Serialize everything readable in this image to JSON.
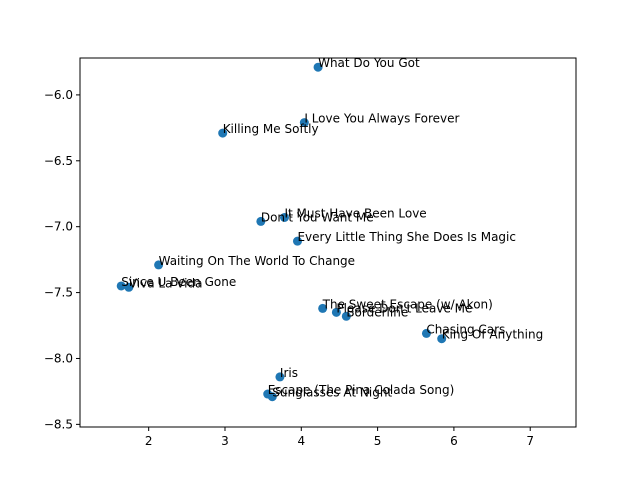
{
  "chart_data": {
    "type": "scatter",
    "title": "",
    "xlabel": "",
    "ylabel": "",
    "xlim": [
      1.1,
      7.6
    ],
    "ylim": [
      -8.52,
      -5.72
    ],
    "x_ticks": [
      2,
      3,
      4,
      5,
      6,
      7
    ],
    "y_ticks": [
      -6.0,
      -6.5,
      -7.0,
      -7.5,
      -8.0,
      -8.5
    ],
    "x_tick_labels": [
      "2",
      "3",
      "4",
      "5",
      "6",
      "7"
    ],
    "y_tick_labels": [
      "−6.0",
      "−6.5",
      "−7.0",
      "−7.5",
      "−8.0",
      "−8.5"
    ],
    "grid": false,
    "color": "#1f77b4",
    "points": [
      {
        "label": "What Do You Got",
        "x": 4.22,
        "y": -5.79
      },
      {
        "label": "I Love You Always Forever",
        "x": 4.04,
        "y": -6.21
      },
      {
        "label": "Killing Me Softly",
        "x": 2.97,
        "y": -6.29
      },
      {
        "label": "It Must Have Been Love",
        "x": 3.78,
        "y": -6.93
      },
      {
        "label": "Don't You Want Me",
        "x": 3.47,
        "y": -6.96
      },
      {
        "label": "Every Little Thing She Does Is Magic",
        "x": 3.95,
        "y": -7.11
      },
      {
        "label": "Waiting On The World To Change",
        "x": 2.13,
        "y": -7.29
      },
      {
        "label": "Since U Been Gone",
        "x": 1.64,
        "y": -7.45
      },
      {
        "label": "Viva La Vida",
        "x": 1.74,
        "y": -7.46
      },
      {
        "label": "The Sweet Escape (w/ Akon)",
        "x": 4.28,
        "y": -7.62
      },
      {
        "label": "Please Don't Leave Me",
        "x": 4.46,
        "y": -7.65
      },
      {
        "label": "Borderline",
        "x": 4.59,
        "y": -7.68
      },
      {
        "label": "Chasing Cars",
        "x": 5.64,
        "y": -7.81
      },
      {
        "label": "King Of Anything",
        "x": 5.84,
        "y": -7.85
      },
      {
        "label": "Iris",
        "x": 3.72,
        "y": -8.14
      },
      {
        "label": "Escape (The Pina Colada Song)",
        "x": 3.56,
        "y": -8.27
      },
      {
        "label": "Sunglasses At Night",
        "x": 3.62,
        "y": -8.29
      }
    ]
  }
}
